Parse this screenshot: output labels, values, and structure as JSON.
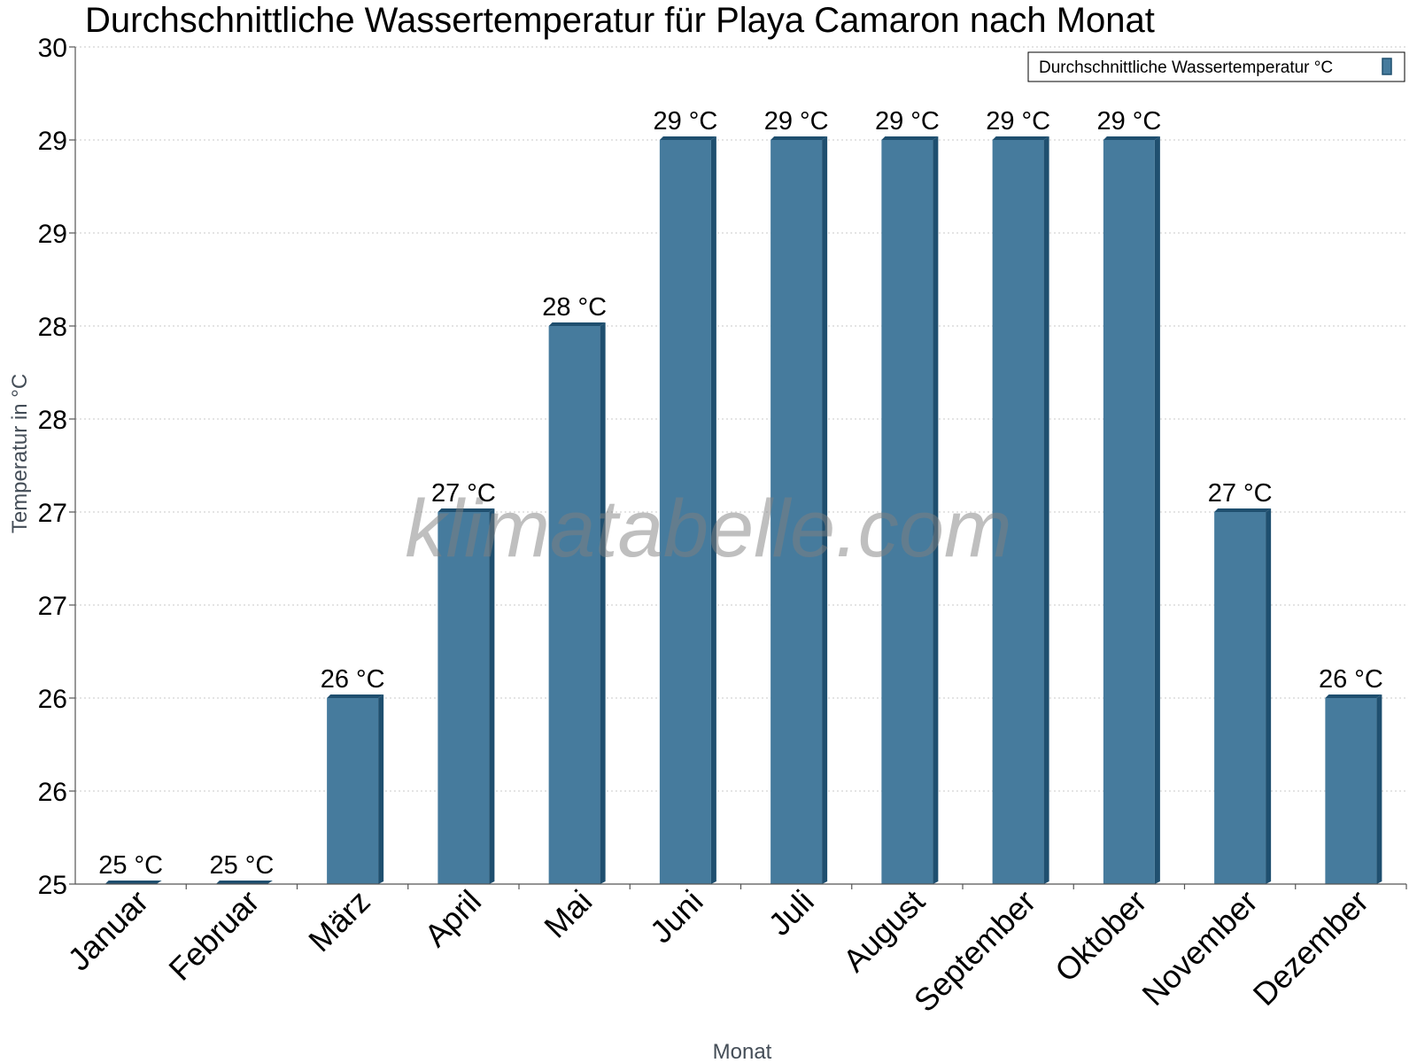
{
  "chart_data": {
    "type": "bar",
    "title": "Durchschnittliche Wassertemperatur für Playa Camaron nach Monat",
    "xlabel": "Monat",
    "ylabel": "Temperatur in °C",
    "categories": [
      "Januar",
      "Februar",
      "März",
      "April",
      "Mai",
      "Juni",
      "Juli",
      "August",
      "September",
      "Oktober",
      "November",
      "Dezember"
    ],
    "series": [
      {
        "name": "Durchschnittliche Wassertemperatur °C",
        "values": [
          25,
          25,
          26,
          27,
          28,
          29,
          29,
          29,
          29,
          29,
          27,
          26
        ],
        "labels": [
          "25 °C",
          "25 °C",
          "26 °C",
          "27 °C",
          "28 °C",
          "29 °C",
          "29 °C",
          "29 °C",
          "29 °C",
          "29 °C",
          "27 °C",
          "26 °C"
        ]
      }
    ],
    "ylim": [
      25,
      29.5
    ],
    "yticks": [
      25,
      25.5,
      26,
      26.5,
      27,
      27.5,
      28,
      28.5,
      29,
      29.5
    ],
    "ytick_labels": [
      "25",
      "26",
      "26",
      "27",
      "27",
      "28",
      "28",
      "29",
      "29",
      "30"
    ],
    "grid": true,
    "legend_position": "top-right",
    "colors": {
      "bar": "#467b9d",
      "bar_side": "#1f4f6f"
    }
  },
  "watermark": "klimatabelle.com"
}
